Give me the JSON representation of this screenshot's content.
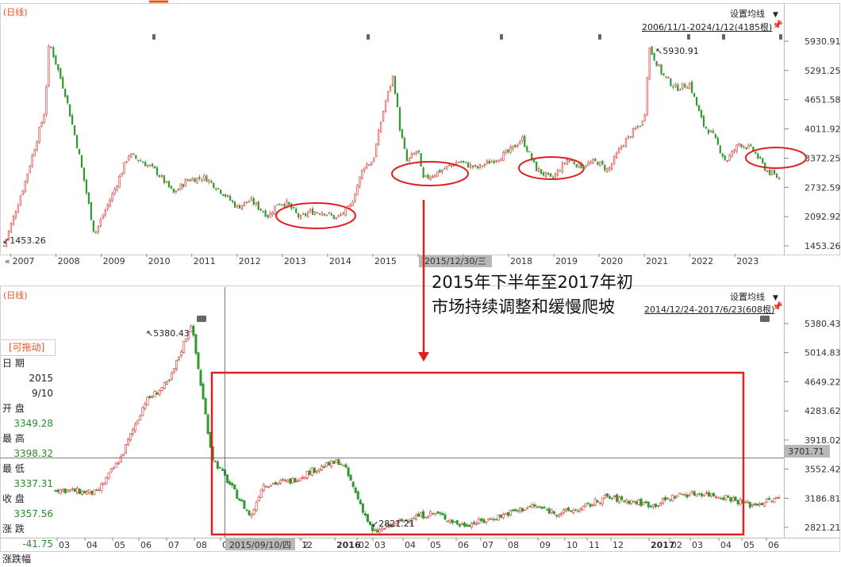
{
  "top_panel": {
    "tag": "(日线)",
    "settings_label": "设置均线",
    "range_label": "2006/11/1-2024/1/12(4185根)",
    "high_note": "5930.91",
    "low_note": "1453.26",
    "cursor_date": "2015/12/30/三",
    "y_ticks": [
      "5930.91",
      "5291.25",
      "4651.58",
      "4011.92",
      "3372.25",
      "2732.59",
      "2092.92",
      "1453.26"
    ],
    "x_ticks": [
      "2007",
      "2008",
      "2009",
      "2010",
      "2011",
      "2012",
      "2013",
      "2014",
      "2015",
      "2016",
      "2017",
      "2018",
      "2019",
      "2020",
      "2021",
      "2022",
      "2023"
    ]
  },
  "bottom_panel": {
    "tag": "(日线)",
    "settings_label": "设置均线",
    "range_label": "2014/12/24-2017/6/23(608根)",
    "high_note": "5380.43",
    "low_note": "2821.21",
    "cursor_date": "2015/09/10/四",
    "cursor_price": "3701.71",
    "y_ticks": [
      "5380.43",
      "5014.83",
      "4649.22",
      "4283.62",
      "3918.02",
      "3552.42",
      "3186.81",
      "2821.21"
    ],
    "x_ticks": [
      "03",
      "04",
      "05",
      "06",
      "07",
      "08",
      "09",
      "10",
      "11",
      "12",
      "2015/09/10/四",
      "2",
      "2016",
      "02",
      "03",
      "04",
      "05",
      "06",
      "07",
      "08",
      "09",
      "10",
      "11",
      "12",
      "2017",
      "02",
      "03",
      "04",
      "05",
      "06"
    ]
  },
  "annotation": {
    "line1": "2015年下半年至2017年初",
    "line2": "市场持续调整和缓慢爬坡"
  },
  "info_box": {
    "header": "[可拖动]",
    "date_label": "日    期",
    "date_year": "2015",
    "date_md": "9/10",
    "open_label": "开    盘",
    "open_value": "3349.28",
    "high_label": "最    高",
    "high_value": "3398.32",
    "low_label": "最    低",
    "low_value": "3337.31",
    "close_label": "收    盘",
    "close_value": "3357.56",
    "change_label": "涨    跌",
    "change_value": "-41.75",
    "pct_label": "涨跌幅"
  },
  "colors": {
    "up": "#e22a2a",
    "down": "#2f9a2f",
    "highlight": "#e02020",
    "axis": "#333333"
  },
  "chart_data": [
    {
      "type": "line",
      "title": "",
      "x_label": "",
      "y_label": "",
      "x": [
        2006.85,
        2007.3,
        2007.75,
        2007.85,
        2008.2,
        2008.5,
        2008.85,
        2009.3,
        2009.6,
        2009.9,
        2010.2,
        2010.6,
        2010.9,
        2011.3,
        2011.7,
        2012.0,
        2012.3,
        2012.7,
        2012.9,
        2013.1,
        2013.4,
        2013.6,
        2013.9,
        2014.2,
        2014.5,
        2014.8,
        2015.0,
        2015.25,
        2015.45,
        2015.6,
        2015.75,
        2016.0,
        2016.1,
        2016.5,
        2016.9,
        2017.3,
        2017.8,
        2018.0,
        2018.3,
        2018.6,
        2018.95,
        2019.3,
        2019.6,
        2019.95,
        2020.2,
        2020.5,
        2020.8,
        2021.0,
        2021.1,
        2021.4,
        2021.7,
        2022.0,
        2022.3,
        2022.5,
        2022.8,
        2023.1,
        2023.4,
        2023.7,
        2024.03
      ],
      "values": [
        1453,
        2800,
        4400,
        5930,
        4800,
        3500,
        1700,
        2700,
        3450,
        3300,
        3100,
        2600,
        2900,
        2950,
        2600,
        2300,
        2450,
        2100,
        2400,
        2380,
        2050,
        2200,
        2200,
        2050,
        2300,
        3200,
        3300,
        4500,
        5180,
        4000,
        3300,
        3550,
        2900,
        3100,
        3300,
        3150,
        3400,
        3500,
        3800,
        3150,
        2900,
        3350,
        3200,
        3300,
        3100,
        3650,
        4000,
        4200,
        5800,
        5200,
        4900,
        5000,
        4100,
        3900,
        3300,
        3700,
        3550,
        3100,
        2900
      ],
      "ylim": [
        1453.26,
        5930.91
      ]
    },
    {
      "type": "line",
      "title": "",
      "x_label": "",
      "y_label": "",
      "x": [
        "2014-12-24",
        "2015-02",
        "2015-03",
        "2015-04",
        "2015-05",
        "2015-06-12",
        "2015-07-08",
        "2015-08-26",
        "2015-09-10",
        "2015-10",
        "2015-11",
        "2015-12",
        "2015-12-23",
        "2016-01-27",
        "2016-03",
        "2016-04",
        "2016-05",
        "2016-06",
        "2016-07",
        "2016-08",
        "2016-09",
        "2016-10",
        "2016-11",
        "2016-12",
        "2017-01",
        "2017-02",
        "2017-03",
        "2017-04",
        "2017-05",
        "2017-06-23"
      ],
      "values": [
        3300,
        3250,
        3700,
        4400,
        4650,
        5380,
        3700,
        2950,
        3357,
        3400,
        3550,
        3650,
        3550,
        2750,
        2950,
        3000,
        2850,
        2900,
        3000,
        3090,
        3000,
        3050,
        3200,
        3150,
        3100,
        3230,
        3250,
        3200,
        3100,
        3190
      ],
      "ylim": [
        2821.21,
        5380.43
      ]
    }
  ]
}
